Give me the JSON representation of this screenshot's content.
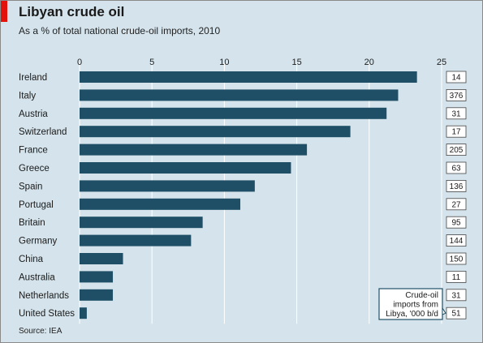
{
  "header": {
    "title": "Libyan crude oil",
    "subtitle": "As a % of total national crude-oil imports, 2010"
  },
  "footer": {
    "source": "Source: IEA"
  },
  "colors": {
    "accent": "#e3120b",
    "bar": "#1f4f66",
    "background": "#d5e4ec",
    "grid": "#ffffff",
    "callout_border": "#1f4f66",
    "box_fill": "#ffffff"
  },
  "chart_data": {
    "type": "bar",
    "orientation": "horizontal",
    "title": "Libyan crude oil",
    "subtitle": "As a % of total national crude-oil imports, 2010",
    "xlabel": "",
    "ylabel": "",
    "xlim": [
      0,
      25
    ],
    "x_ticks": [
      0,
      5,
      10,
      15,
      20,
      25
    ],
    "grid": true,
    "categories": [
      "Ireland",
      "Italy",
      "Austria",
      "Switzerland",
      "France",
      "Greece",
      "Spain",
      "Portugal",
      "Britain",
      "Germany",
      "China",
      "Australia",
      "Netherlands",
      "United States"
    ],
    "values": [
      23.3,
      22.0,
      21.2,
      18.7,
      15.7,
      14.6,
      12.1,
      11.1,
      8.5,
      7.7,
      3.0,
      2.3,
      2.3,
      0.5
    ],
    "annotation_column": {
      "label": "Crude-oil imports from Libya, '000 b/d",
      "label_lines": [
        "Crude-oil",
        "imports from",
        "Libya, '000 b/d"
      ],
      "values": [
        "14",
        "376",
        "31",
        "17",
        "205",
        "63",
        "136",
        "27",
        "95",
        "144",
        "150",
        "11",
        "31",
        "51"
      ]
    }
  }
}
